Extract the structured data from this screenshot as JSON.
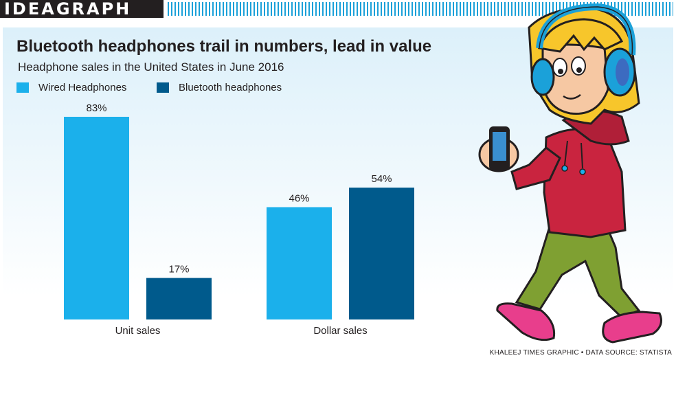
{
  "header": {
    "brand": "IDEAGRAPH"
  },
  "credit": "KHALEEJ TIMES GRAPHIC • DATA SOURCE: STATISTA",
  "colors": {
    "wired": "#1bb0eb",
    "bluetooth": "#005a8c",
    "brand_stripes": "#1ba1d9"
  },
  "chart_data": {
    "type": "bar",
    "title": "Bluetooth headphones trail in numbers, lead in value",
    "subtitle": "Headphone sales in the United States in June 2016",
    "categories": [
      "Unit sales",
      "Dollar sales"
    ],
    "series": [
      {
        "name": "Wired Headphones",
        "values": [
          83,
          46
        ],
        "labels": [
          "83%",
          "46%"
        ]
      },
      {
        "name": "Bluetooth headphones",
        "values": [
          17,
          54
        ],
        "labels": [
          "17%",
          "54%"
        ]
      }
    ],
    "unit": "%",
    "ylim": [
      0,
      83
    ],
    "grid": false,
    "legend_position": "top-left"
  }
}
